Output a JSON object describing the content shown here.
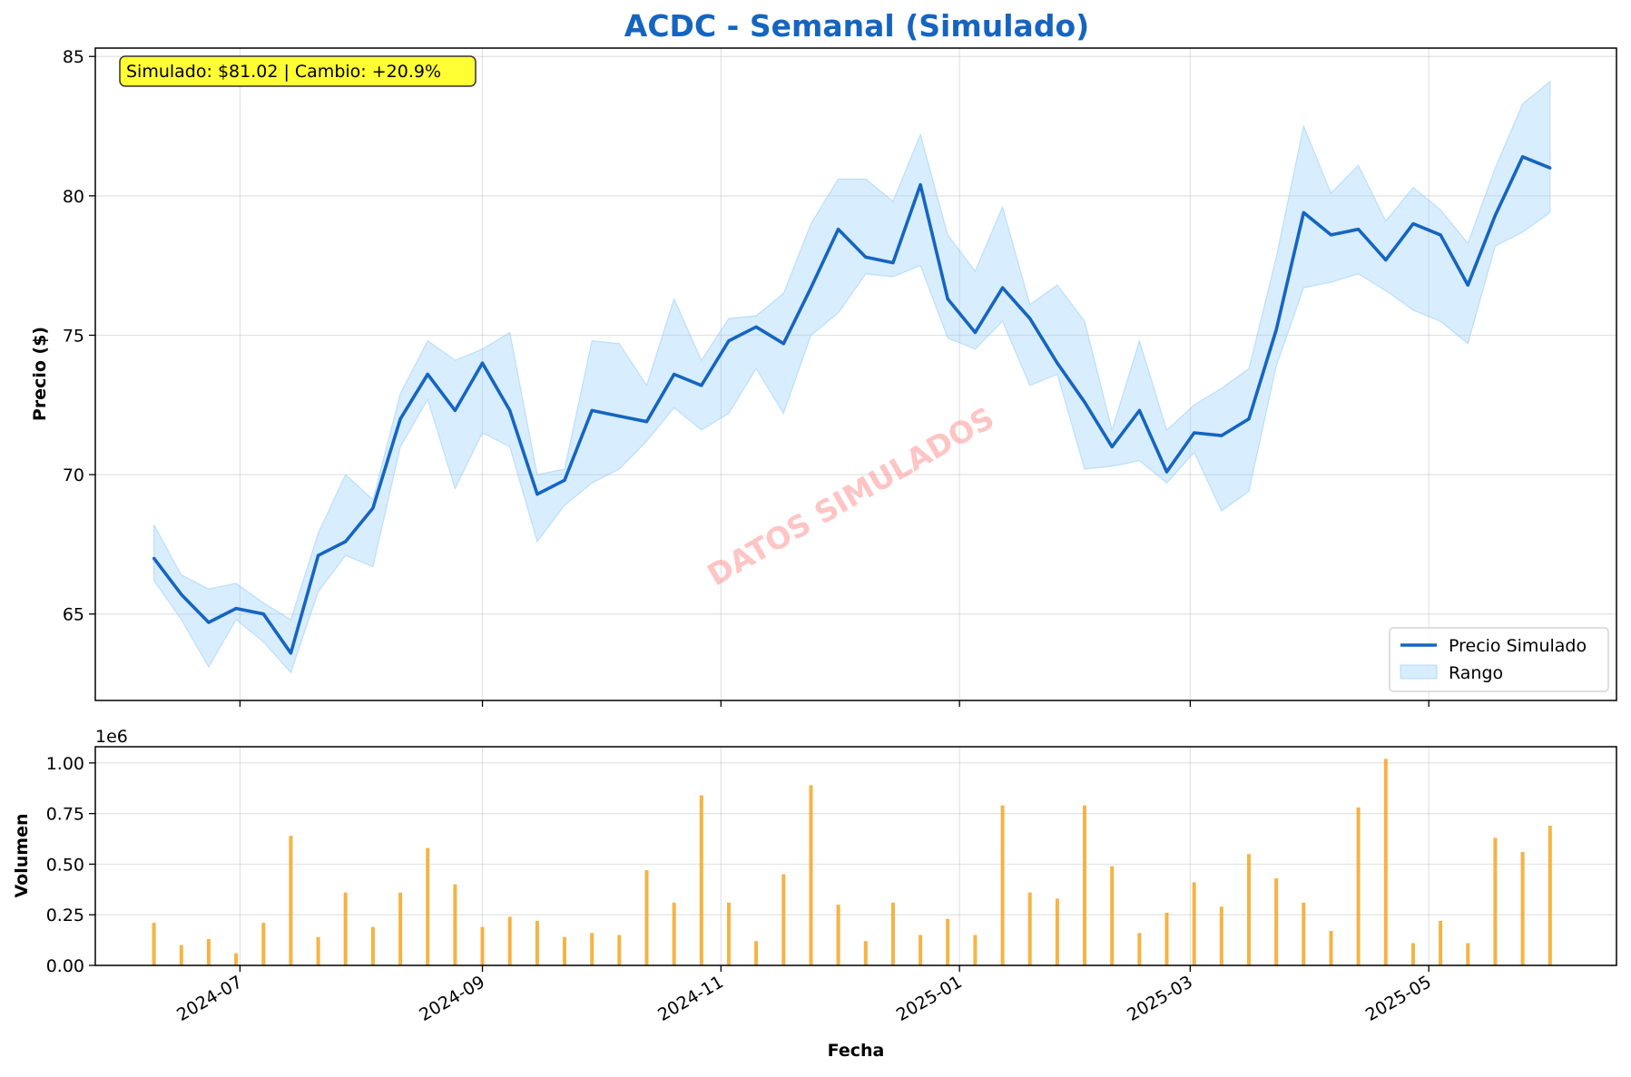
{
  "chart_data": [
    {
      "type": "line",
      "title": "ACDC - Semanal (Simulado)",
      "ylabel": "Precio ($)",
      "xlabel": "",
      "ylim": [
        61.9,
        85.3
      ],
      "x_axis": "date",
      "xlim": [
        "2024-05-25",
        "2025-06-18"
      ],
      "yticks": [
        65,
        70,
        75,
        80,
        85
      ],
      "xticks": [
        "2024-07",
        "2024-09",
        "2024-11",
        "2025-01",
        "2025-03",
        "2025-05"
      ],
      "grid": true,
      "legend": {
        "placement": "lower-right",
        "entries": [
          "Precio Simulado",
          "Rango"
        ]
      },
      "annotation": "Simulado: $81.02 | Cambio: +20.9%",
      "watermark": "DATOS SIMULADOS",
      "colors": {
        "line": "#1565c0",
        "band": "#90caf9",
        "title": "#1565c0",
        "annotation_bg": "#ffff33",
        "watermark": "#ff8a8a"
      },
      "x": [
        "2024-06-09",
        "2024-06-16",
        "2024-06-23",
        "2024-06-30",
        "2024-07-07",
        "2024-07-14",
        "2024-07-21",
        "2024-07-28",
        "2024-08-04",
        "2024-08-11",
        "2024-08-18",
        "2024-08-25",
        "2024-09-01",
        "2024-09-08",
        "2024-09-15",
        "2024-09-22",
        "2024-09-29",
        "2024-10-06",
        "2024-10-13",
        "2024-10-20",
        "2024-10-27",
        "2024-11-03",
        "2024-11-10",
        "2024-11-17",
        "2024-11-24",
        "2024-12-01",
        "2024-12-08",
        "2024-12-15",
        "2024-12-22",
        "2024-12-29",
        "2025-01-05",
        "2025-01-12",
        "2025-01-19",
        "2025-01-26",
        "2025-02-02",
        "2025-02-09",
        "2025-02-16",
        "2025-02-23",
        "2025-03-02",
        "2025-03-09",
        "2025-03-16",
        "2025-03-23",
        "2025-03-30",
        "2025-04-06",
        "2025-04-13",
        "2025-04-20",
        "2025-04-27",
        "2025-05-04",
        "2025-05-11",
        "2025-05-18",
        "2025-05-25",
        "2025-06-01"
      ],
      "series": [
        {
          "name": "Precio Simulado",
          "values": [
            67.0,
            65.7,
            64.7,
            65.2,
            65.0,
            63.6,
            67.1,
            67.6,
            68.8,
            72.0,
            73.6,
            72.3,
            74.0,
            72.3,
            69.3,
            69.8,
            72.3,
            72.1,
            71.9,
            73.6,
            73.2,
            74.8,
            75.3,
            74.7,
            76.7,
            78.8,
            77.8,
            77.6,
            80.4,
            76.3,
            75.1,
            76.7,
            75.6,
            74.0,
            72.6,
            71.0,
            72.3,
            70.1,
            71.5,
            71.4,
            72.0,
            75.2,
            79.4,
            78.6,
            78.8,
            77.7,
            79.0,
            78.6,
            76.8,
            79.3,
            81.4,
            81.0
          ]
        },
        {
          "name": "Rango",
          "low": [
            66.2,
            64.8,
            63.1,
            64.8,
            64.0,
            62.9,
            65.8,
            67.1,
            66.7,
            71.0,
            72.7,
            69.5,
            71.5,
            71.0,
            67.6,
            68.9,
            69.7,
            70.2,
            71.2,
            72.4,
            71.6,
            72.2,
            73.8,
            72.2,
            75.0,
            75.8,
            77.2,
            77.1,
            77.5,
            74.9,
            74.5,
            75.5,
            73.2,
            73.6,
            70.2,
            70.3,
            70.5,
            69.7,
            70.8,
            68.7,
            69.4,
            73.9,
            76.7,
            76.9,
            77.2,
            76.6,
            75.9,
            75.5,
            74.7,
            78.2,
            78.7,
            79.4
          ],
          "high": [
            68.2,
            66.4,
            65.9,
            66.1,
            65.4,
            64.8,
            67.9,
            70.0,
            69.1,
            72.9,
            74.8,
            74.1,
            74.5,
            75.1,
            70.0,
            70.2,
            74.8,
            74.7,
            73.2,
            76.3,
            74.1,
            75.6,
            75.7,
            76.5,
            79.0,
            80.6,
            80.6,
            79.8,
            82.2,
            78.6,
            77.3,
            79.6,
            76.1,
            76.8,
            75.5,
            71.6,
            74.8,
            71.6,
            72.5,
            73.1,
            73.8,
            77.8,
            82.5,
            80.1,
            81.1,
            79.1,
            80.3,
            79.5,
            78.3,
            81.0,
            83.3,
            84.1
          ]
        }
      ]
    },
    {
      "type": "bar",
      "title": "",
      "xlabel": "Fecha",
      "ylabel": "Volumen",
      "y_multiplier": "1e6",
      "ylim": [
        0,
        1.08
      ],
      "yticks": [
        "0.00",
        "0.25",
        "0.50",
        "0.75",
        "1.00"
      ],
      "x_axis": "date",
      "xticks": [
        "2024-07",
        "2024-09",
        "2024-11",
        "2025-01",
        "2025-03",
        "2025-05"
      ],
      "grid": true,
      "colors": {
        "bar": "#f5a623"
      },
      "x": [
        "2024-06-09",
        "2024-06-16",
        "2024-06-23",
        "2024-06-30",
        "2024-07-07",
        "2024-07-14",
        "2024-07-21",
        "2024-07-28",
        "2024-08-04",
        "2024-08-11",
        "2024-08-18",
        "2024-08-25",
        "2024-09-01",
        "2024-09-08",
        "2024-09-15",
        "2024-09-22",
        "2024-09-29",
        "2024-10-06",
        "2024-10-13",
        "2024-10-20",
        "2024-10-27",
        "2024-11-03",
        "2024-11-10",
        "2024-11-17",
        "2024-11-24",
        "2024-12-01",
        "2024-12-08",
        "2024-12-15",
        "2024-12-22",
        "2024-12-29",
        "2025-01-05",
        "2025-01-12",
        "2025-01-19",
        "2025-01-26",
        "2025-02-02",
        "2025-02-09",
        "2025-02-16",
        "2025-02-23",
        "2025-03-02",
        "2025-03-09",
        "2025-03-16",
        "2025-03-23",
        "2025-03-30",
        "2025-04-06",
        "2025-04-13",
        "2025-04-20",
        "2025-04-27",
        "2025-05-04",
        "2025-05-11",
        "2025-05-18",
        "2025-05-25",
        "2025-06-01"
      ],
      "values": [
        0.21,
        0.1,
        0.13,
        0.06,
        0.21,
        0.64,
        0.14,
        0.36,
        0.19,
        0.36,
        0.58,
        0.4,
        0.19,
        0.24,
        0.22,
        0.14,
        0.16,
        0.15,
        0.47,
        0.31,
        0.84,
        0.31,
        0.12,
        0.45,
        0.89,
        0.3,
        0.12,
        0.31,
        0.15,
        0.23,
        0.15,
        0.79,
        0.36,
        0.33,
        0.79,
        0.49,
        0.16,
        0.26,
        0.41,
        0.29,
        0.55,
        0.43,
        0.31,
        0.17,
        0.78,
        1.02,
        0.11,
        0.22,
        0.11,
        0.63,
        0.56,
        0.69
      ]
    }
  ]
}
